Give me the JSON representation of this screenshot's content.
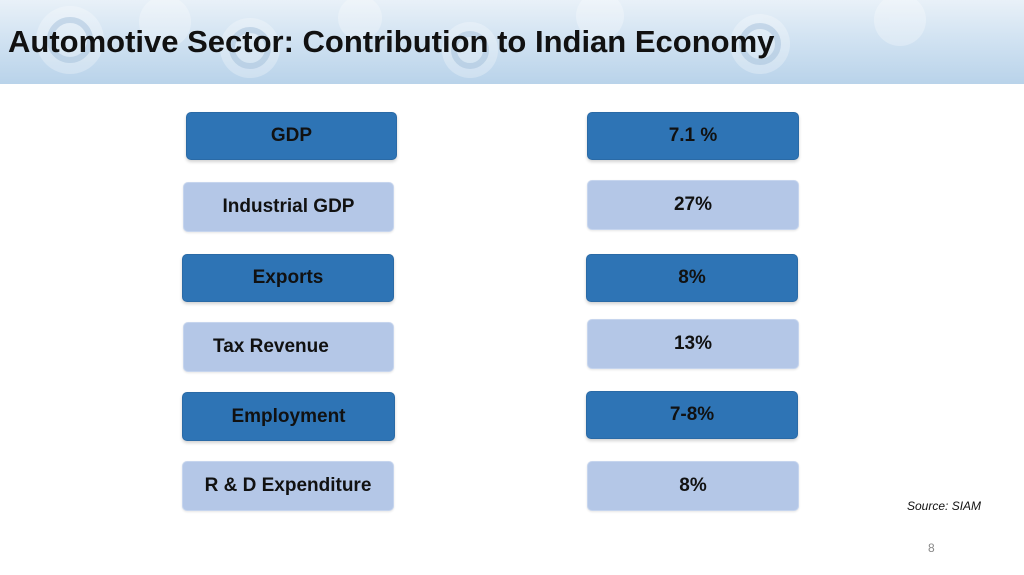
{
  "slide": {
    "title": "Automotive Sector: Contribution to Indian Economy",
    "rows": [
      {
        "label": "GDP",
        "value": "7.1 %"
      },
      {
        "label": "Industrial GDP",
        "value": "27%"
      },
      {
        "label": "Exports",
        "value": "8%"
      },
      {
        "label": "Tax Revenue",
        "value": "13%"
      },
      {
        "label": "Employment",
        "value": "7-8%"
      },
      {
        "label": "R & D Expenditure",
        "value": "8%"
      }
    ],
    "source": "Source: SIAM",
    "page_number": "8"
  },
  "colors": {
    "dark_box": "#2e74b5",
    "light_box": "#b4c7e7",
    "header_band": "#b9d3ea"
  }
}
